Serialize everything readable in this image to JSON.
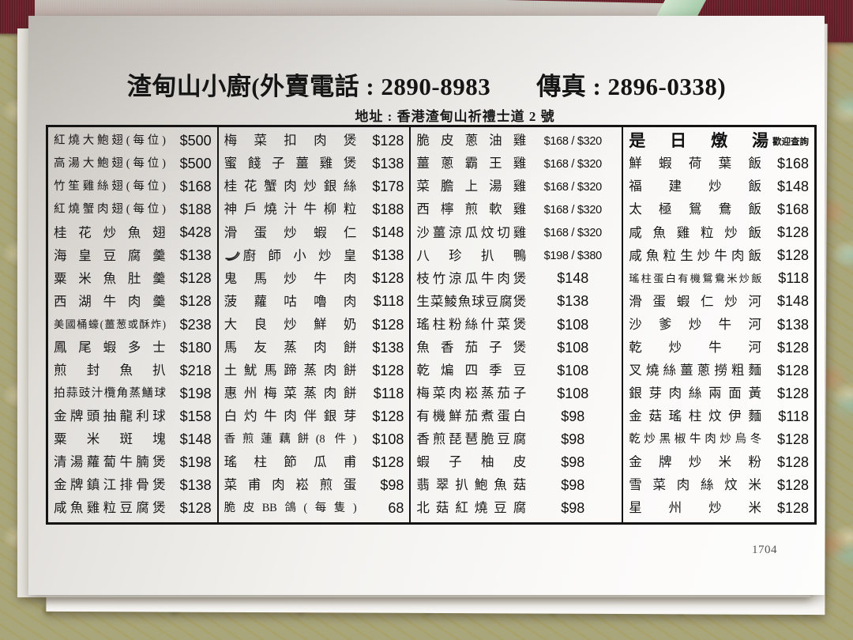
{
  "colors": {
    "paper": "#f6f5f2",
    "runner_maroon": "#71252f",
    "tablecloth_olive": "#a9a67b",
    "ink": "#1a1a1a"
  },
  "header": {
    "title_line_left": "渣甸山小廚(外賣電話 : 2890-8983",
    "title_line_right": "傳真 : 2896-0338)",
    "address_line": "地址 : 香港渣甸山祈禮士道 2 號"
  },
  "page_number": "1704",
  "menu": {
    "columns": [
      {
        "items": [
          {
            "name": "紅燒大鮑翅(每位)",
            "price": "$500"
          },
          {
            "name": "高湯大鮑翅(每位)",
            "price": "$500"
          },
          {
            "name": "竹笙雞絲翅(每位)",
            "price": "$168"
          },
          {
            "name": "紅燒蟹肉翅(每位)",
            "price": "$188"
          },
          {
            "name": "桂花炒魚翅",
            "price": "$428"
          },
          {
            "name": "海皇豆腐羹",
            "price": "$138"
          },
          {
            "name": "粟米魚肚羹",
            "price": "$128"
          },
          {
            "name": "西湖牛肉羹",
            "price": "$128"
          },
          {
            "name": "美國桶蠔(薑葱或酥炸)",
            "price": "$238"
          },
          {
            "name": "鳳尾蝦多士",
            "price": "$180"
          },
          {
            "name": "煎封魚扒",
            "price": "$218"
          },
          {
            "name": "拍蒜豉汁欖角蒸鱔球",
            "price": "$198"
          },
          {
            "name": "金牌頭抽龍利球",
            "price": "$158"
          },
          {
            "name": "粟米斑塊",
            "price": "$148"
          },
          {
            "name": "清湯蘿蔔牛腩煲",
            "price": "$198"
          },
          {
            "name": "金牌鎮江排骨煲",
            "price": "$138"
          },
          {
            "name": "咸魚雞粒豆腐煲",
            "price": "$128"
          }
        ]
      },
      {
        "items": [
          {
            "name": "梅菜扣肉煲",
            "price": "$128"
          },
          {
            "name": "蜜餞子薑雞煲",
            "price": "$138"
          },
          {
            "name": "桂花蟹肉炒銀絲",
            "price": "$178"
          },
          {
            "name": "神戶燒汁牛柳粒",
            "price": "$188"
          },
          {
            "name": "滑蛋炒蝦仁",
            "price": "$148"
          },
          {
            "name": "廚師小炒皇",
            "price": "$138",
            "icon": "chili-icon"
          },
          {
            "name": "鬼馬炒牛肉",
            "price": "$128"
          },
          {
            "name": "菠蘿咕嚕肉",
            "price": "$118"
          },
          {
            "name": "大良炒鮮奶",
            "price": "$128"
          },
          {
            "name": "馬友蒸肉餅",
            "price": "$138"
          },
          {
            "name": "土魷馬蹄蒸肉餅",
            "price": "$128"
          },
          {
            "name": "惠州梅菜蒸肉餅",
            "price": "$118"
          },
          {
            "name": "白灼牛肉伴銀芽",
            "price": "$128"
          },
          {
            "name": "香煎蓮藕餅(8 件)",
            "price": "$108"
          },
          {
            "name": "瑤柱節瓜甫",
            "price": "$128"
          },
          {
            "name": "菜甫肉崧煎蛋",
            "price": "$98"
          },
          {
            "name": "脆皮BB鴿(每隻)",
            "price": "68"
          }
        ]
      },
      {
        "items": [
          {
            "name": "脆皮蔥油雞",
            "price": "$168 / $320"
          },
          {
            "name": "薑蔥霸王雞",
            "price": "$168 / $320"
          },
          {
            "name": "菜膽上湯雞",
            "price": "$168 / $320"
          },
          {
            "name": "西檸煎軟雞",
            "price": "$168 / $320"
          },
          {
            "name": "沙薑涼瓜炆切雞",
            "price": "$168 / $320"
          },
          {
            "name": "八珍扒鴨",
            "price": "$198 / $380"
          },
          {
            "name": "枝竹涼瓜牛肉煲",
            "price": "$148"
          },
          {
            "name": "生菜鯪魚球豆腐煲",
            "price": "$138"
          },
          {
            "name": "瑤柱粉絲什菜煲",
            "price": "$108"
          },
          {
            "name": "魚香茄子煲",
            "price": "$108"
          },
          {
            "name": "乾煸四季豆",
            "price": "$108"
          },
          {
            "name": "梅菜肉崧蒸茄子",
            "price": "$108"
          },
          {
            "name": "有機鮮茄煮蛋白",
            "price": "$98"
          },
          {
            "name": "香煎琵琶脆豆腐",
            "price": "$98"
          },
          {
            "name": "蝦子柚皮",
            "price": "$98"
          },
          {
            "name": "翡翠扒鮑魚菇",
            "price": "$98"
          },
          {
            "name": "北菇紅燒豆腐",
            "price": "$98"
          }
        ]
      },
      {
        "header": {
          "title": "是日燉湯",
          "note": "歡迎查詢"
        },
        "items": [
          {
            "name": "鮮蝦荷葉飯",
            "price": "$168"
          },
          {
            "name": "福建炒飯",
            "price": "$148"
          },
          {
            "name": "太極鴛鴦飯",
            "price": "$168"
          },
          {
            "name": "咸魚雞粒炒飯",
            "price": "$128"
          },
          {
            "name": "咸魚粒生炒牛肉飯",
            "price": "$128"
          },
          {
            "name": "瑤柱蛋白有機鴛鴦米炒飯",
            "price": "$118"
          },
          {
            "name": "滑蛋蝦仁炒河",
            "price": "$148"
          },
          {
            "name": "沙爹炒牛河",
            "price": "$138"
          },
          {
            "name": "乾炒牛河",
            "price": "$128"
          },
          {
            "name": "叉燒絲薑蔥撈粗麵",
            "price": "$128"
          },
          {
            "name": "銀芽肉絲兩面黃",
            "price": "$128"
          },
          {
            "name": "金菇瑤柱炆伊麵",
            "price": "$118"
          },
          {
            "name": "乾炒黑椒牛肉炒烏冬",
            "price": "$128"
          },
          {
            "name": "金牌炒米粉",
            "price": "$128"
          },
          {
            "name": "雪菜肉絲炆米",
            "price": "$128"
          },
          {
            "name": "星州炒米",
            "price": "$128"
          }
        ]
      }
    ]
  }
}
